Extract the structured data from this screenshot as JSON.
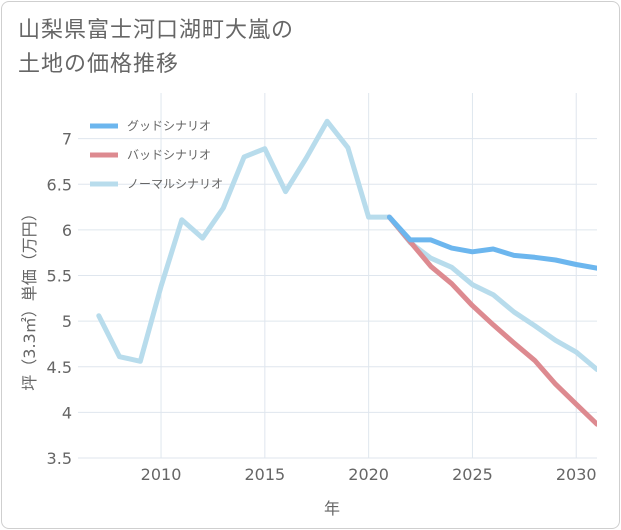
{
  "title_line1": "山梨県富士河口湖町大嵐の",
  "title_line2": "土地の価格推移",
  "chart_data": {
    "type": "line",
    "xlabel": "年",
    "ylabel": "坪（3.3㎡）単価（万円）",
    "xlim": [
      2006,
      2031
    ],
    "ylim": [
      3.5,
      7.5
    ],
    "x_ticks": [
      2010,
      2015,
      2020,
      2025,
      2030
    ],
    "y_ticks": [
      3.5,
      4,
      4.5,
      5,
      5.5,
      6,
      6.5,
      7
    ],
    "y_tick_labels": [
      "3.5",
      "4",
      "4.5",
      "5",
      "5.5",
      "6",
      "6.5",
      "7"
    ],
    "grid": true,
    "legend_position": "top-left",
    "series": [
      {
        "name": "グッドシナリオ",
        "color": "#6cb6ee",
        "x": [
          2021,
          2022,
          2023,
          2024,
          2025,
          2026,
          2027,
          2028,
          2029,
          2030,
          2031
        ],
        "values": [
          6.14,
          5.89,
          5.89,
          5.8,
          5.76,
          5.79,
          5.72,
          5.7,
          5.67,
          5.62,
          5.58
        ]
      },
      {
        "name": "バッドシナリオ",
        "color": "#dd8a90",
        "x": [
          2021,
          2022,
          2023,
          2024,
          2025,
          2026,
          2027,
          2028,
          2029,
          2030,
          2031
        ],
        "values": [
          6.14,
          5.87,
          5.6,
          5.41,
          5.17,
          4.96,
          4.76,
          4.57,
          4.31,
          4.09,
          3.87
        ]
      },
      {
        "name": "ノーマルシナリオ",
        "color": "#b8dcec",
        "x": [
          2007,
          2008,
          2009,
          2010,
          2011,
          2012,
          2013,
          2014,
          2015,
          2016,
          2017,
          2018,
          2019,
          2020,
          2021,
          2022,
          2023,
          2024,
          2025,
          2026,
          2027,
          2028,
          2029,
          2030,
          2031
        ],
        "values": [
          5.06,
          4.61,
          4.56,
          5.38,
          6.11,
          5.91,
          6.24,
          6.8,
          6.89,
          6.42,
          6.79,
          7.19,
          6.9,
          6.14,
          6.14,
          5.86,
          5.69,
          5.59,
          5.4,
          5.29,
          5.1,
          4.95,
          4.79,
          4.66,
          4.47
        ]
      }
    ]
  }
}
